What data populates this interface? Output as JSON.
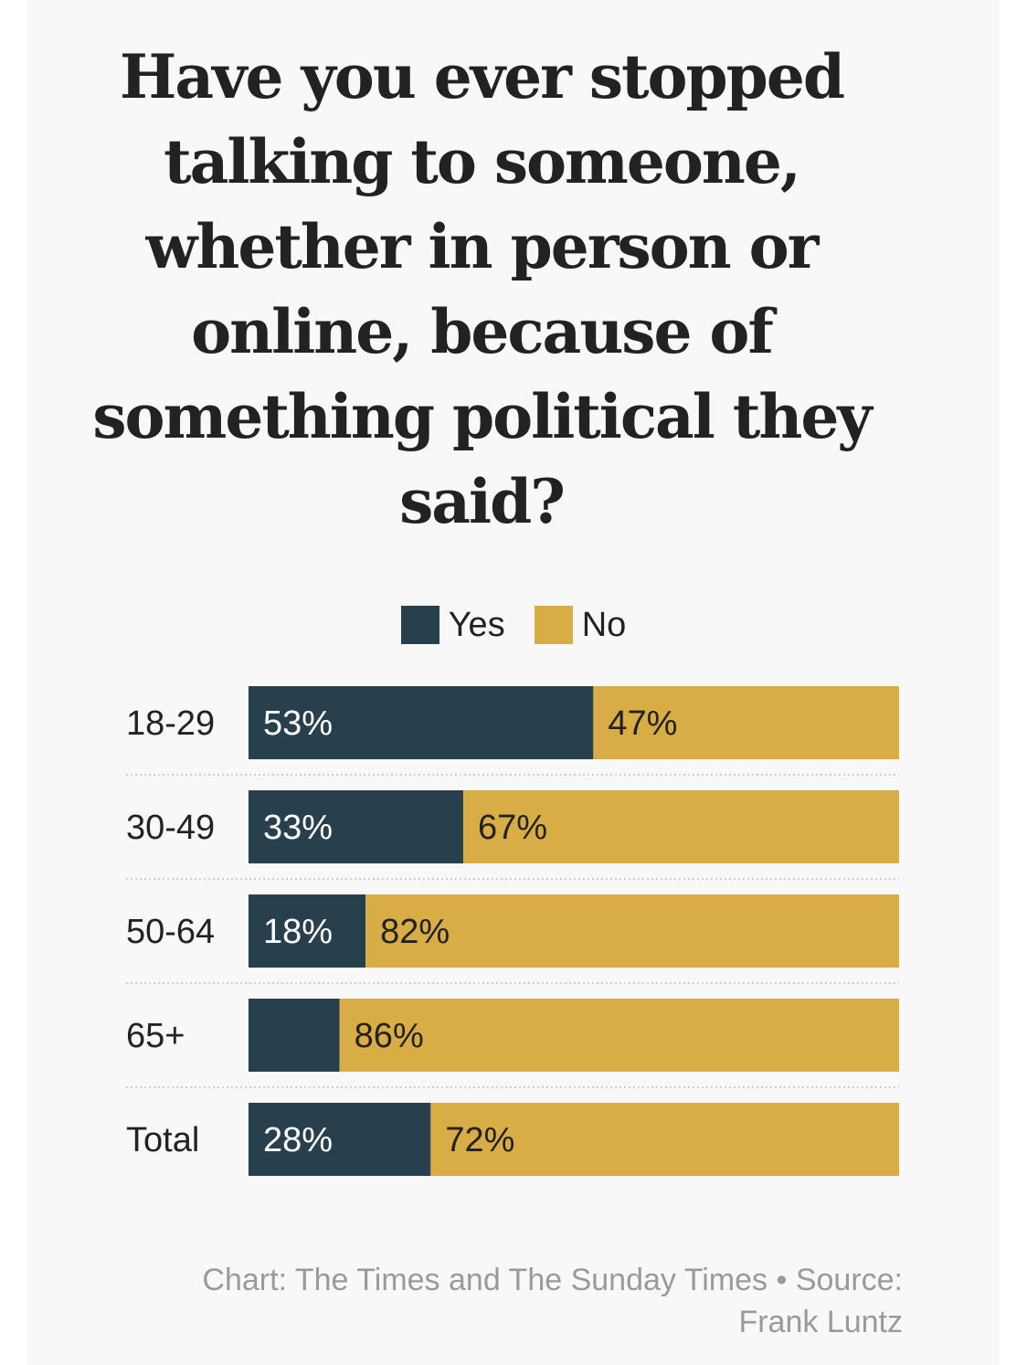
{
  "chart_data": {
    "type": "bar",
    "orientation": "horizontal",
    "stacked": true,
    "title": "Have you ever stopped talking to someone, whether in person or online, because of something political they said?",
    "categories": [
      "18-29",
      "30-49",
      "50-64",
      "65+",
      "Total"
    ],
    "series": [
      {
        "name": "Yes",
        "color": "#28404d",
        "values": [
          53,
          33,
          18,
          14,
          28
        ],
        "labels": [
          "53%",
          "33%",
          "18%",
          "",
          "28%"
        ]
      },
      {
        "name": "No",
        "color": "#d9ad45",
        "values": [
          47,
          67,
          82,
          86,
          72
        ],
        "labels": [
          "47%",
          "67%",
          "82%",
          "86%",
          "72%"
        ]
      }
    ],
    "xlim": [
      0,
      100
    ],
    "legend": "top-center",
    "grid": false
  },
  "source": "Chart: The Times and The Sunday Times • Source: Frank Luntz"
}
